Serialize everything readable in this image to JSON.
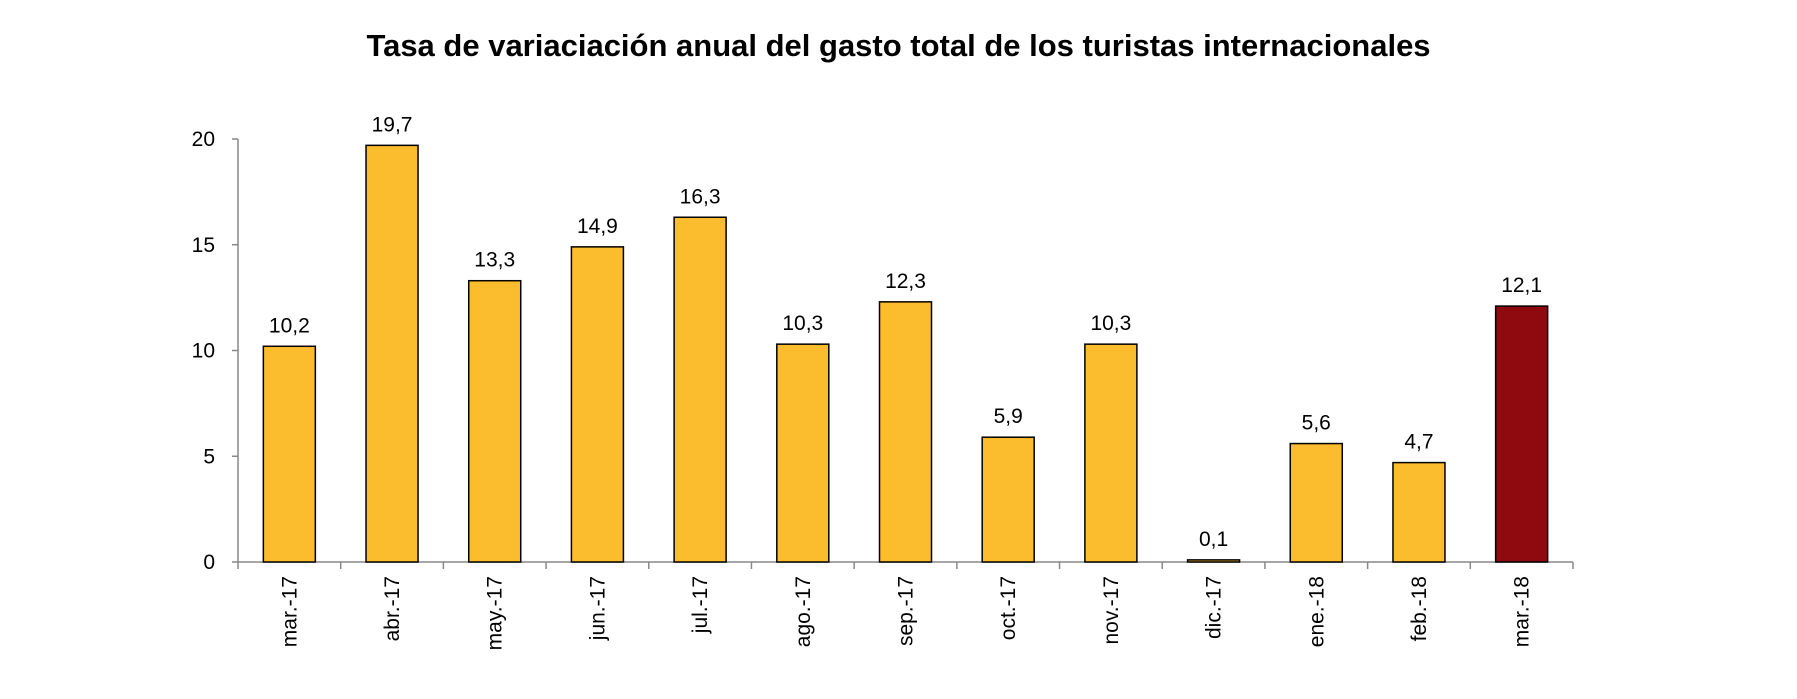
{
  "chart_data": {
    "type": "bar",
    "title": "Tasa de variaciación anual del gasto total de los turistas internacionales",
    "xlabel": "",
    "ylabel": "",
    "categories": [
      "mar.-17",
      "abr.-17",
      "may.-17",
      "jun.-17",
      "jul.-17",
      "ago.-17",
      "sep.-17",
      "oct.-17",
      "nov.-17",
      "dic.-17",
      "ene.-18",
      "feb.-18",
      "mar.-18"
    ],
    "values": [
      10.2,
      19.7,
      13.3,
      14.9,
      16.3,
      10.3,
      12.3,
      5.9,
      10.3,
      0.1,
      5.6,
      4.7,
      12.1
    ],
    "value_labels": [
      "10,2",
      "19,7",
      "13,3",
      "14,9",
      "16,3",
      "10,3",
      "12,3",
      "5,9",
      "10,3",
      "0,1",
      "5,6",
      "4,7",
      "12,1"
    ],
    "y_ticks": [
      0,
      5,
      10,
      15,
      20
    ],
    "ylim": [
      0,
      20
    ],
    "grid": false,
    "legend": "none",
    "colors": {
      "bar": "#FBBC2E",
      "highlight_bar": "#8F0A0F",
      "highlight_index": 12,
      "outline": "#000000"
    }
  }
}
